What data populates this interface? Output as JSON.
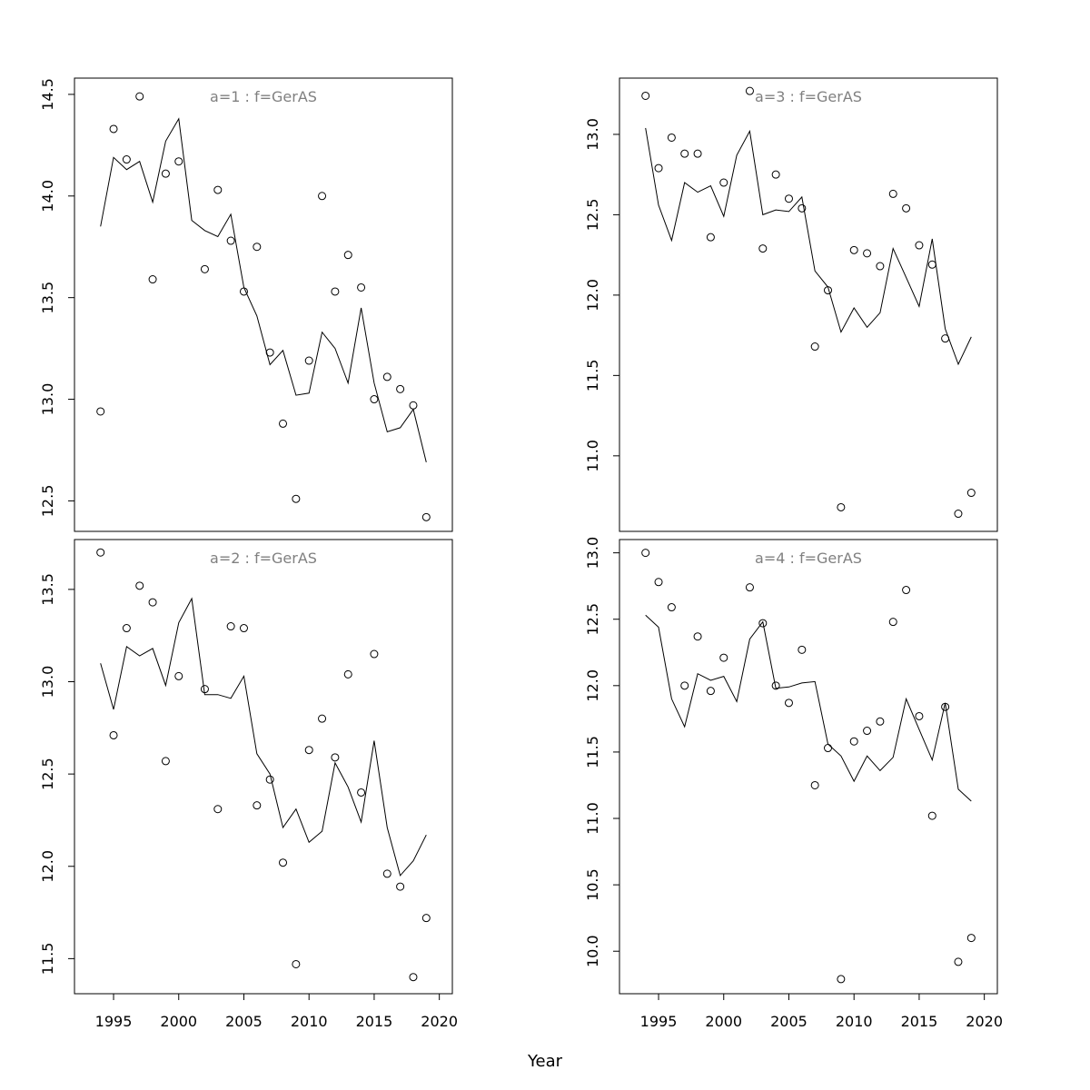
{
  "chart_data": {
    "type": "line",
    "xlabel": "Year",
    "x_ticks": [
      1995,
      2000,
      2005,
      2010,
      2015,
      2020
    ],
    "xlim": [
      1992,
      2021
    ],
    "panels": [
      {
        "title": "a=1  :  f=GerAS",
        "ylim": [
          12.35,
          14.58
        ],
        "y_ticks": [
          12.5,
          13.0,
          13.5,
          14.0,
          14.5
        ],
        "y_tick_labels": [
          "12.5",
          "13.0",
          "13.5",
          "14.0",
          "14.5"
        ],
        "observed": {
          "x": [
            1994,
            1995,
            1996,
            1997,
            1998,
            1999,
            2000,
            2002,
            2003,
            2004,
            2005,
            2006,
            2007,
            2008,
            2009,
            2010,
            2011,
            2012,
            2013,
            2014,
            2015,
            2016,
            2017,
            2018,
            2019
          ],
          "y": [
            12.94,
            14.33,
            14.18,
            14.49,
            13.59,
            14.11,
            14.17,
            13.64,
            14.03,
            13.78,
            13.53,
            13.75,
            13.23,
            12.88,
            12.51,
            13.19,
            14.0,
            13.53,
            13.71,
            13.55,
            13.0,
            13.11,
            13.05,
            12.97,
            12.42
          ]
        },
        "fitted": {
          "x": [
            1994,
            1995,
            1996,
            1997,
            1998,
            1999,
            2000,
            2001,
            2002,
            2003,
            2004,
            2005,
            2006,
            2007,
            2008,
            2009,
            2010,
            2011,
            2012,
            2013,
            2014,
            2015,
            2016,
            2017,
            2018,
            2019
          ],
          "y": [
            13.85,
            14.19,
            14.13,
            14.17,
            13.97,
            14.27,
            14.38,
            13.88,
            13.83,
            13.8,
            13.91,
            13.55,
            13.41,
            13.17,
            13.24,
            13.02,
            13.03,
            13.33,
            13.25,
            13.08,
            13.45,
            13.08,
            12.84,
            12.86,
            12.95,
            12.69
          ]
        }
      },
      {
        "title": "a=3  :  f=GerAS",
        "ylim": [
          10.53,
          13.35
        ],
        "y_ticks": [
          11.0,
          11.5,
          12.0,
          12.5,
          13.0
        ],
        "y_tick_labels": [
          "11.0",
          "11.5",
          "12.0",
          "12.5",
          "13.0"
        ],
        "observed": {
          "x": [
            1994,
            1995,
            1996,
            1997,
            1998,
            1999,
            2000,
            2002,
            2003,
            2004,
            2005,
            2006,
            2007,
            2008,
            2009,
            2010,
            2011,
            2012,
            2013,
            2014,
            2015,
            2016,
            2017,
            2018,
            2019
          ],
          "y": [
            13.24,
            12.79,
            12.98,
            12.88,
            12.88,
            12.36,
            12.7,
            13.27,
            12.29,
            12.75,
            12.6,
            12.54,
            11.68,
            12.03,
            10.68,
            12.28,
            12.26,
            12.18,
            12.63,
            12.54,
            12.31,
            12.19,
            11.73,
            10.64,
            10.77
          ]
        },
        "fitted": {
          "x": [
            1994,
            1995,
            1996,
            1997,
            1998,
            1999,
            2000,
            2001,
            2002,
            2003,
            2004,
            2005,
            2006,
            2007,
            2008,
            2009,
            2010,
            2011,
            2012,
            2013,
            2014,
            2015,
            2016,
            2017,
            2018,
            2019
          ],
          "y": [
            13.04,
            12.56,
            12.34,
            12.7,
            12.64,
            12.68,
            12.49,
            12.87,
            13.02,
            12.5,
            12.53,
            12.52,
            12.61,
            12.15,
            12.05,
            11.77,
            11.92,
            11.8,
            11.89,
            12.29,
            12.11,
            11.93,
            12.35,
            11.79,
            11.57,
            11.74
          ]
        }
      },
      {
        "title": "a=2  :  f=GerAS",
        "ylim": [
          11.31,
          13.77
        ],
        "y_ticks": [
          11.5,
          12.0,
          12.5,
          13.0,
          13.5
        ],
        "y_tick_labels": [
          "11.5",
          "12.0",
          "12.5",
          "13.0",
          "13.5"
        ],
        "observed": {
          "x": [
            1994,
            1995,
            1996,
            1997,
            1998,
            1999,
            2000,
            2002,
            2003,
            2004,
            2005,
            2006,
            2007,
            2008,
            2009,
            2010,
            2011,
            2012,
            2013,
            2014,
            2015,
            2016,
            2017,
            2018,
            2019
          ],
          "y": [
            13.7,
            12.71,
            13.29,
            13.52,
            13.43,
            12.57,
            13.03,
            12.96,
            12.31,
            13.3,
            13.29,
            12.33,
            12.47,
            12.02,
            11.47,
            12.63,
            12.8,
            12.59,
            13.04,
            12.4,
            13.15,
            11.96,
            11.89,
            11.4,
            11.72
          ]
        },
        "fitted": {
          "x": [
            1994,
            1995,
            1996,
            1997,
            1998,
            1999,
            2000,
            2001,
            2002,
            2003,
            2004,
            2005,
            2006,
            2007,
            2008,
            2009,
            2010,
            2011,
            2012,
            2013,
            2014,
            2015,
            2016,
            2017,
            2018,
            2019
          ],
          "y": [
            13.1,
            12.85,
            13.19,
            13.14,
            13.18,
            12.98,
            13.32,
            13.45,
            12.93,
            12.93,
            12.91,
            13.03,
            12.61,
            12.5,
            12.21,
            12.31,
            12.13,
            12.19,
            12.56,
            12.43,
            12.24,
            12.68,
            12.21,
            11.95,
            12.03,
            12.17
          ]
        }
      },
      {
        "title": "a=4  :  f=GerAS",
        "ylim": [
          9.68,
          13.1
        ],
        "y_ticks": [
          10.0,
          10.5,
          11.0,
          11.5,
          12.0,
          12.5,
          13.0
        ],
        "y_tick_labels": [
          "10.0",
          "10.5",
          "11.0",
          "11.5",
          "12.0",
          "12.5",
          "13.0"
        ],
        "observed": {
          "x": [
            1994,
            1995,
            1996,
            1997,
            1998,
            1999,
            2000,
            2002,
            2003,
            2004,
            2005,
            2006,
            2007,
            2008,
            2009,
            2010,
            2011,
            2012,
            2013,
            2014,
            2015,
            2016,
            2017,
            2018,
            2019
          ],
          "y": [
            13.0,
            12.78,
            12.59,
            12.0,
            12.37,
            11.96,
            12.21,
            12.74,
            12.47,
            12.0,
            11.87,
            12.27,
            11.25,
            11.53,
            9.79,
            11.58,
            11.66,
            11.73,
            12.48,
            12.72,
            11.77,
            11.02,
            11.84,
            9.92,
            10.1
          ]
        },
        "fitted": {
          "x": [
            1994,
            1995,
            1996,
            1997,
            1998,
            1999,
            2000,
            2001,
            2002,
            2003,
            2004,
            2005,
            2006,
            2007,
            2008,
            2009,
            2010,
            2011,
            2012,
            2013,
            2014,
            2015,
            2016,
            2017,
            2018,
            2019
          ],
          "y": [
            12.53,
            12.44,
            11.9,
            11.69,
            12.09,
            12.04,
            12.07,
            11.88,
            12.35,
            12.48,
            11.98,
            11.99,
            12.02,
            12.03,
            11.56,
            11.47,
            11.28,
            11.47,
            11.36,
            11.46,
            11.9,
            11.67,
            11.44,
            11.87,
            11.22,
            11.13
          ]
        }
      }
    ]
  }
}
